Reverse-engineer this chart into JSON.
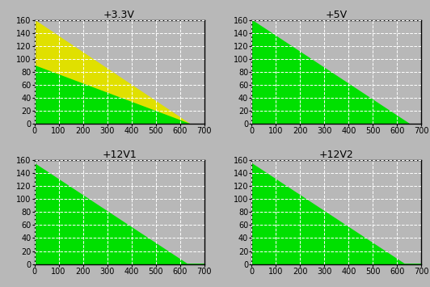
{
  "titles": [
    "+3.3V",
    "+5V",
    "+12V1",
    "+12V2"
  ],
  "xlim": [
    0,
    700
  ],
  "ylim": [
    0,
    160
  ],
  "xticks": [
    0,
    100,
    200,
    300,
    400,
    500,
    600,
    700
  ],
  "yticks": [
    0,
    20,
    40,
    60,
    80,
    100,
    120,
    140,
    160
  ],
  "bg_color": "#b8b8b8",
  "plot_bg_color": "#b8b8b8",
  "green": "#00e000",
  "yellow": "#e0e000",
  "grid_color": "white",
  "title_color": "black",
  "figsize": [
    5.32,
    3.55
  ],
  "dpi": 100
}
